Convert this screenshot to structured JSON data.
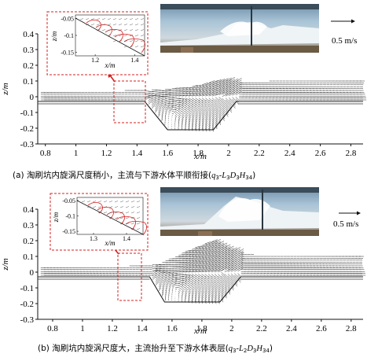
{
  "chart_data": [
    {
      "type": "quiver",
      "panel": "a",
      "caption": "(a) 淘刷坑内旋涡尺度稍小，主流与下游水体平顺衔接(q3-L3D3H34)",
      "caption_main": "(a) 淘刷坑内旋涡尺度稍小，主流与下游水体平顺衔接(",
      "caption_q": "q",
      "caption_q_sub": "3",
      "caption_L": "-L",
      "caption_L_sub": "3",
      "caption_D": "D",
      "caption_D_sub": "3",
      "caption_H": "H",
      "caption_H_sub": "34",
      "caption_end": ")",
      "xlabel": "x/m",
      "ylabel": "z/m",
      "xlim": [
        0.75,
        2.88
      ],
      "ylim": [
        -0.3,
        0.4
      ],
      "xticks": [
        "0.8",
        "1",
        "1.2",
        "1.4",
        "1.6",
        "1.8",
        "2",
        "2.2",
        "2.4",
        "2.6",
        "2.8"
      ],
      "xtick_values": [
        0.8,
        1,
        1.2,
        1.4,
        1.6,
        1.8,
        2,
        2.2,
        2.4,
        2.6,
        2.8
      ],
      "yticks": [
        "0.4",
        "0.3",
        "0.2",
        "0.1",
        "0",
        "-0.1",
        "-0.2",
        "-0.3"
      ],
      "ytick_values": [
        0.4,
        0.3,
        0.2,
        0.1,
        0,
        -0.1,
        -0.2,
        -0.3
      ],
      "scale_label": "0.5 m/s",
      "scale_value": 0.5,
      "bed_profile": {
        "x": [
          0.75,
          1.25,
          1.45,
          1.6,
          1.9,
          2.05,
          2.88
        ],
        "z": [
          -0.03,
          -0.03,
          -0.03,
          -0.21,
          -0.21,
          -0.03,
          -0.03
        ]
      },
      "surface_profile": {
        "x": [
          0.75,
          1.3,
          1.6,
          1.8,
          1.95,
          2.1,
          2.4,
          2.88
        ],
        "z": [
          0.04,
          0.04,
          0.05,
          0.07,
          0.11,
          0.09,
          0.11,
          0.11
        ]
      },
      "inset": {
        "xlabel": "x/m",
        "ylabel": "z/m",
        "xlim": [
          1.1,
          1.45
        ],
        "ylim": [
          -0.16,
          -0.04
        ],
        "xticks": [
          "1.2",
          "1.4"
        ],
        "xtick_values": [
          1.2,
          1.4
        ],
        "yticks": [
          "-0.05",
          "-0.1",
          "-0.15"
        ],
        "ytick_values": [
          -0.05,
          -0.1,
          -0.15
        ]
      }
    },
    {
      "type": "quiver",
      "panel": "b",
      "caption": "(b) 淘刷坑内旋涡尺度大，主流抬升至下游水体表层(q3-L2D3H34)",
      "caption_main": "(b) 淘刷坑内旋涡尺度大，主流抬升至下游水体表层(",
      "caption_q": "q",
      "caption_q_sub": "3",
      "caption_L": "-L",
      "caption_L_sub": "2",
      "caption_D": "D",
      "caption_D_sub": "3",
      "caption_H": "H",
      "caption_H_sub": "34",
      "caption_end": ")",
      "xlabel": "x/m",
      "ylabel": "z/m",
      "xlim": [
        0.7,
        2.88
      ],
      "ylim": [
        -0.3,
        0.4
      ],
      "xticks": [
        "0.8",
        "1",
        "1.2",
        "1.4",
        "1.6",
        "1.8",
        "2",
        "2.2",
        "2.4",
        "2.6",
        "2.8"
      ],
      "xtick_values": [
        0.8,
        1,
        1.2,
        1.4,
        1.6,
        1.8,
        2,
        2.2,
        2.4,
        2.6,
        2.8
      ],
      "yticks": [
        "0.4",
        "0.3",
        "0.2",
        "0.1",
        "0",
        "-0.1",
        "-0.2",
        "-0.3"
      ],
      "ytick_values": [
        0.4,
        0.3,
        0.2,
        0.1,
        0,
        -0.1,
        -0.2,
        -0.3
      ],
      "scale_label": "0.5 m/s",
      "scale_value": 0.5,
      "bed_profile": {
        "x": [
          0.7,
          1.3,
          1.45,
          1.55,
          1.92,
          2.06,
          2.88
        ],
        "z": [
          -0.03,
          -0.03,
          -0.03,
          -0.19,
          -0.19,
          -0.03,
          -0.03
        ]
      },
      "surface_profile": {
        "x": [
          0.7,
          1.3,
          1.5,
          1.7,
          1.88,
          2.0,
          2.15,
          2.4,
          2.88
        ],
        "z": [
          0.04,
          0.04,
          0.05,
          0.14,
          0.2,
          0.14,
          0.11,
          0.1,
          0.1
        ]
      },
      "inset": {
        "xlabel": "x/m",
        "ylabel": "z/m",
        "xlim": [
          1.25,
          1.45
        ],
        "ylim": [
          -0.16,
          -0.04
        ],
        "xticks": [
          "1.3",
          "1.4"
        ],
        "xtick_values": [
          1.3,
          1.4
        ],
        "yticks": [
          "-0.05",
          "-0.1",
          "-0.15"
        ],
        "ytick_values": [
          -0.05,
          -0.1,
          -0.15
        ]
      }
    }
  ]
}
